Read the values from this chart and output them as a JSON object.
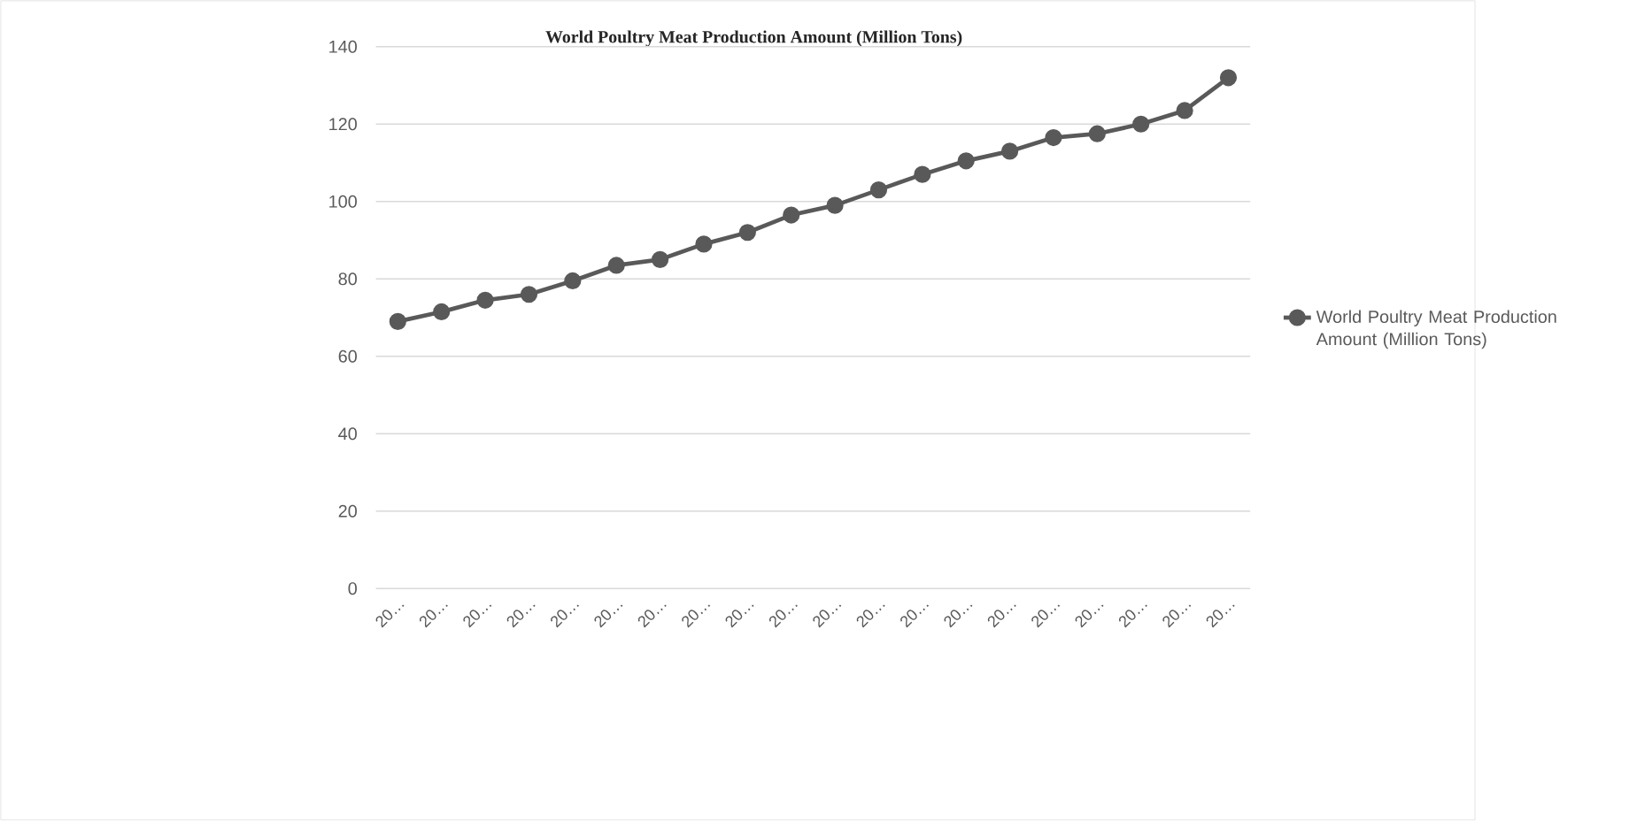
{
  "chart_data": {
    "type": "line",
    "title": "World Poultry Meat Production Amount (Million Tons)",
    "categories": [
      "20…",
      "20…",
      "20…",
      "20…",
      "20…",
      "20…",
      "20…",
      "20…",
      "20…",
      "20…",
      "20…",
      "20…",
      "20…",
      "20…",
      "20…",
      "20…",
      "20…",
      "20…",
      "20…",
      "20…"
    ],
    "series": [
      {
        "name": "World Poultry Meat Production Amount (Million Tons)",
        "color": "#595959",
        "values": [
          69,
          71.5,
          74.5,
          76,
          79.5,
          83.5,
          85,
          89,
          92,
          96.5,
          99,
          103,
          107,
          110.5,
          113,
          116.5,
          117.5,
          120,
          123.5,
          132
        ]
      }
    ],
    "ylim": [
      0,
      140
    ],
    "yticks": [
      0,
      20,
      40,
      60,
      80,
      100,
      120,
      140
    ],
    "grid": "y",
    "legend": "right",
    "marker": "circle",
    "line_style": "solid"
  }
}
